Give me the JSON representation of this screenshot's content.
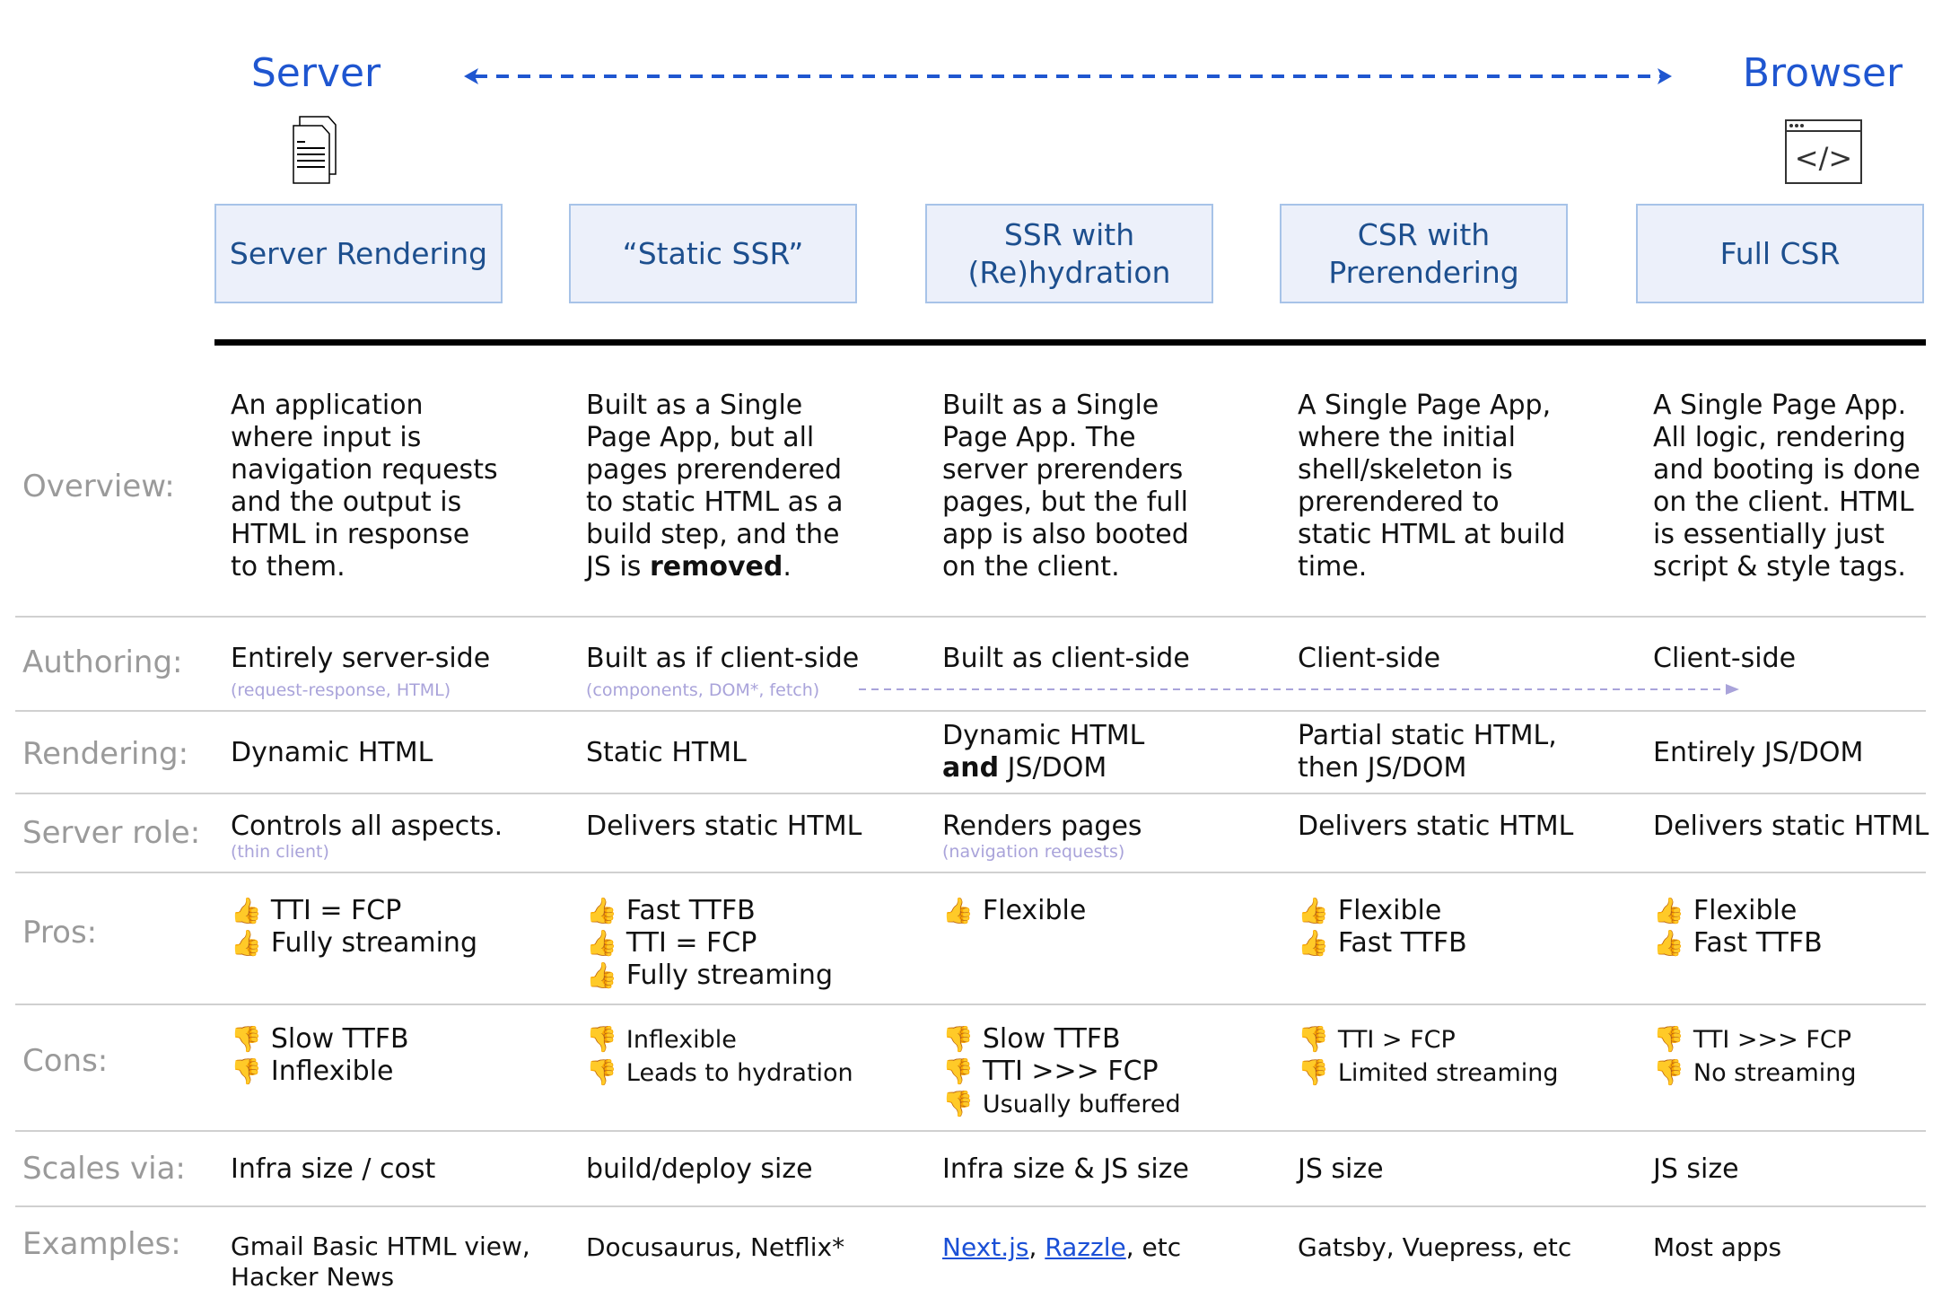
{
  "header": {
    "left_label": "Server",
    "right_label": "Browser",
    "left_icon": "document-icon",
    "right_icon": "browser-code-icon",
    "accent_color": "#1f56d0"
  },
  "columns": [
    "Server Rendering",
    "“Static SSR”",
    "SSR with (Re)hydration",
    "CSR with Prerendering",
    "Full CSR"
  ],
  "rows": {
    "overview": {
      "label": "Overview:",
      "cells": [
        [
          "An application",
          "where input is",
          "navigation requests",
          "and the output is",
          "HTML in response",
          "to them."
        ],
        [
          "Built as a Single",
          "Page App, but all",
          "pages prerendered",
          "to static HTML as a",
          "build step, and the"
        ],
        [
          "Built as a Single",
          "Page App. The",
          "server prerenders",
          "pages, but the full",
          "app is also booted",
          "on the client."
        ],
        [
          "A Single Page App,",
          "where the initial",
          "shell/skeleton is",
          "prerendered to",
          "static HTML at build",
          "time."
        ],
        [
          "A Single Page App.",
          "All logic, rendering",
          "and booting is done",
          "on the client. HTML",
          "is essentially just",
          "script & style tags."
        ]
      ],
      "col2_last_line": {
        "prefix": "JS is ",
        "bold": "removed",
        "suffix": "."
      }
    },
    "authoring": {
      "label": "Authoring:",
      "cells": [
        "Entirely server-side",
        "Built as if client-side",
        "Built as client-side",
        "Client-side",
        "Client-side"
      ],
      "subs": [
        "(request-response, HTML)",
        "(components, DOM*, fetch)"
      ]
    },
    "rendering": {
      "label": "Rendering:",
      "cells": [
        "Dynamic HTML",
        "Static HTML",
        "Dynamic HTML",
        "Partial static HTML,",
        "Entirely JS/DOM"
      ],
      "col3_line2_bold": "and",
      "col3_line2_rest": " JS/DOM",
      "col4_line2": "then JS/DOM"
    },
    "server_role": {
      "label": "Server role:",
      "cells": [
        "Controls all aspects.",
        "Delivers static HTML",
        "Renders pages",
        "Delivers static HTML",
        "Delivers static HTML"
      ],
      "subs": [
        "(thin client)",
        "",
        "(navigation requests)"
      ]
    },
    "pros": {
      "label": "Pros:",
      "icon": "thumbs-up-icon",
      "cells": [
        [
          "TTI = FCP",
          "Fully streaming"
        ],
        [
          "Fast TTFB",
          "TTI = FCP",
          "Fully streaming"
        ],
        [
          "Flexible"
        ],
        [
          "Flexible",
          "Fast TTFB"
        ],
        [
          "Flexible",
          "Fast TTFB"
        ]
      ]
    },
    "cons": {
      "label": "Cons:",
      "icon": "thumbs-down-icon",
      "cells": [
        [
          "Slow TTFB",
          "Inflexible"
        ],
        [
          "Inflexible",
          "Leads to hydration"
        ],
        [
          "Slow TTFB",
          "TTI >>> FCP",
          "Usually buffered"
        ],
        [
          "TTI > FCP",
          "Limited streaming"
        ],
        [
          "TTI >>> FCP",
          "No streaming"
        ]
      ]
    },
    "scales": {
      "label": "Scales via:",
      "cells": [
        "Infra size / cost",
        "build/deploy size",
        "Infra size & JS size",
        "JS size",
        "JS size"
      ]
    },
    "examples": {
      "label": "Examples:",
      "cells": [
        [
          "Gmail Basic HTML view,",
          "Hacker News"
        ],
        [
          "Docusaurus, Netflix*"
        ],
        [],
        [
          "Gatsby, Vuepress, etc"
        ],
        [
          "Most apps"
        ]
      ],
      "col3": {
        "link1": "Next.js",
        "sep": ", ",
        "link2": "Razzle",
        "suffix": ", etc"
      }
    }
  }
}
